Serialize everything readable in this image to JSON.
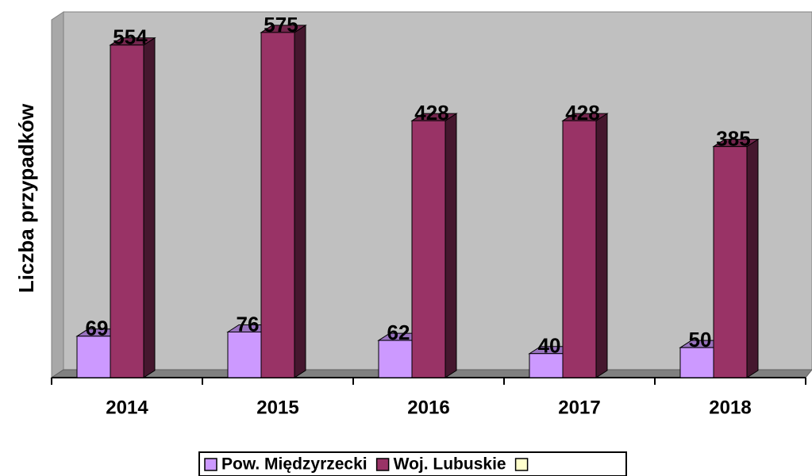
{
  "chart_data": {
    "type": "bar3d",
    "y_label": "Liczba przypadków",
    "categories": [
      "2014",
      "2015",
      "2016",
      "2017",
      "2018"
    ],
    "series": [
      {
        "name": "Pow. Międzyrzecki",
        "color": "#cc99ff",
        "values": [
          69,
          76,
          62,
          40,
          50
        ]
      },
      {
        "name": "Woj. Lubuskie",
        "color": "#993366",
        "values": [
          554,
          575,
          428,
          428,
          385
        ]
      }
    ],
    "ylim": [
      0,
      600
    ],
    "legend": "bottom"
  }
}
